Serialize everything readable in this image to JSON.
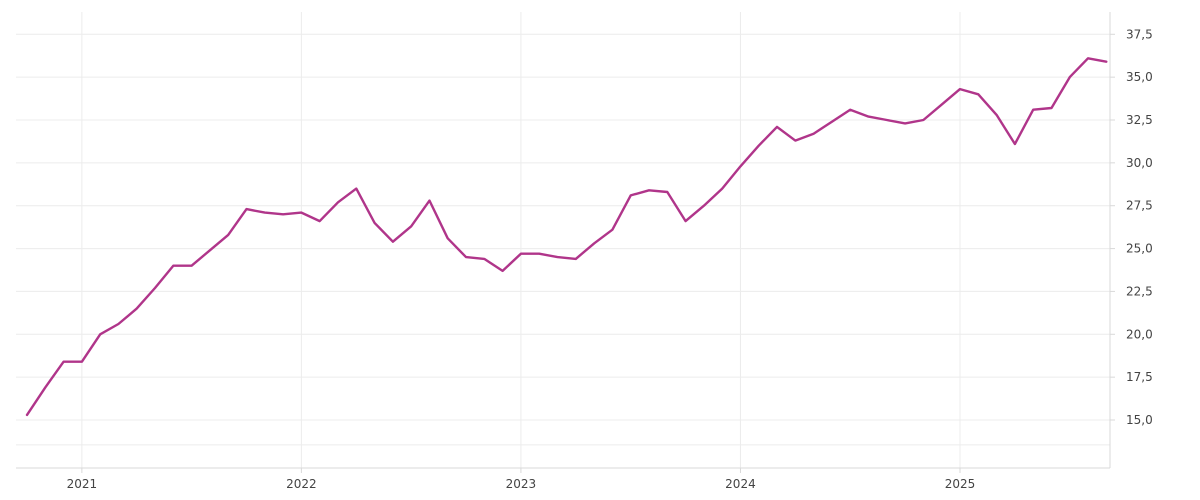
{
  "chart_data": {
    "type": "line",
    "title": "",
    "xlabel": "",
    "ylabel": "",
    "y_axis_position": "right",
    "grid": true,
    "legend": "none",
    "line_color": "#b0358a",
    "x_ticks": [
      "2021",
      "2022",
      "2023",
      "2024",
      "2025"
    ],
    "y_ticks": [
      "15,0",
      "17,5",
      "20,0",
      "22,5",
      "25,0",
      "27,5",
      "30,0",
      "32,5",
      "35,0",
      "37,5"
    ],
    "ylim": [
      12.2,
      38.8
    ],
    "xlim": [
      "2020-10",
      "2025-09"
    ],
    "series": [
      {
        "x": [
          "2020-10",
          "2020-11",
          "2020-12",
          "2021-01",
          "2021-02",
          "2021-03",
          "2021-04",
          "2021-05",
          "2021-06",
          "2021-07",
          "2021-08",
          "2021-09",
          "2021-10",
          "2021-11",
          "2021-12",
          "2022-01",
          "2022-02",
          "2022-03",
          "2022-04",
          "2022-05",
          "2022-06",
          "2022-07",
          "2022-08",
          "2022-09",
          "2022-10",
          "2022-11",
          "2022-12",
          "2023-01",
          "2023-02",
          "2023-03",
          "2023-04",
          "2023-05",
          "2023-06",
          "2023-07",
          "2023-08",
          "2023-09",
          "2023-10",
          "2023-11",
          "2023-12",
          "2024-01",
          "2024-02",
          "2024-03",
          "2024-04",
          "2024-05",
          "2024-06",
          "2024-07",
          "2024-08",
          "2024-09",
          "2024-10",
          "2024-11",
          "2024-12",
          "2025-01",
          "2025-02",
          "2025-03",
          "2025-04",
          "2025-05",
          "2025-06",
          "2025-07",
          "2025-08",
          "2025-09"
        ],
        "values": [
          15.3,
          16.9,
          18.4,
          18.4,
          20.0,
          20.6,
          21.5,
          22.7,
          24.0,
          24.0,
          24.9,
          25.8,
          27.3,
          27.1,
          27.0,
          27.1,
          26.6,
          27.7,
          28.5,
          26.5,
          25.4,
          26.3,
          27.8,
          25.6,
          24.5,
          24.4,
          23.7,
          24.7,
          24.7,
          24.5,
          24.4,
          25.3,
          26.1,
          28.1,
          28.4,
          28.3,
          26.6,
          27.5,
          28.5,
          29.8,
          31.0,
          32.1,
          31.3,
          31.7,
          32.4,
          33.1,
          32.7,
          32.5,
          32.3,
          32.5,
          33.4,
          34.3,
          34.0,
          32.8,
          31.1,
          33.1,
          33.2,
          35.0,
          36.1,
          35.9
        ]
      }
    ]
  }
}
